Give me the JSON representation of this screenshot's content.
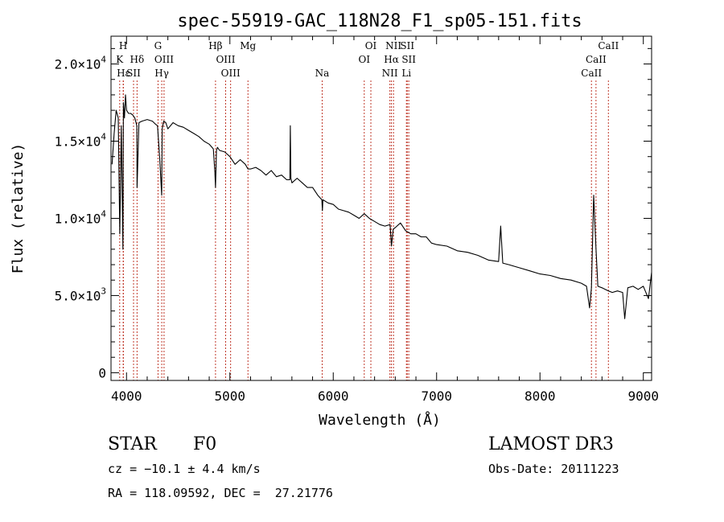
{
  "chart_data": {
    "type": "line",
    "title": "spec-55919-GAC_118N28_F1_sp05-151.fits",
    "xlabel": "Wavelength (Å)",
    "ylabel": "Flux (relative)",
    "xlim": [
      3850,
      9080
    ],
    "ylim": [
      -500,
      21800
    ],
    "x_ticks": [
      4000,
      5000,
      6000,
      7000,
      8000,
      9000
    ],
    "x_tick_labels": [
      "4000",
      "5000",
      "6000",
      "7000",
      "8000",
      "9000"
    ],
    "y_ticks": [
      0,
      5000,
      10000,
      15000,
      20000
    ],
    "y_tick_labels": [
      {
        "mant": "0",
        "exp": ""
      },
      {
        "mant": "5.0×10",
        "exp": "3"
      },
      {
        "mant": "1.0×10",
        "exp": "4"
      },
      {
        "mant": "1.5×10",
        "exp": "4"
      },
      {
        "mant": "2.0×10",
        "exp": "4"
      }
    ],
    "series": [
      {
        "name": "flux",
        "x": [
          3860,
          3880,
          3900,
          3920,
          3935,
          3950,
          3965,
          3970,
          3980,
          3990,
          4000,
          4020,
          4040,
          4060,
          4080,
          4100,
          4102,
          4120,
          4150,
          4200,
          4250,
          4280,
          4300,
          4320,
          4340,
          4345,
          4360,
          4380,
          4400,
          4450,
          4500,
          4550,
          4600,
          4650,
          4700,
          4750,
          4800,
          4840,
          4855,
          4861,
          4870,
          4880,
          4900,
          4950,
          5000,
          5050,
          5100,
          5150,
          5175,
          5200,
          5250,
          5300,
          5350,
          5400,
          5450,
          5500,
          5550,
          5580,
          5585,
          5590,
          5600,
          5650,
          5700,
          5750,
          5800,
          5850,
          5890,
          5895,
          5900,
          5950,
          6000,
          6050,
          6100,
          6150,
          6200,
          6250,
          6300,
          6350,
          6400,
          6450,
          6500,
          6550,
          6563,
          6580,
          6600,
          6650,
          6700,
          6750,
          6800,
          6850,
          6900,
          6950,
          7000,
          7100,
          7200,
          7300,
          7400,
          7500,
          7600,
          7620,
          7640,
          7700,
          7800,
          7900,
          8000,
          8100,
          8200,
          8300,
          8400,
          8450,
          8480,
          8498,
          8520,
          8542,
          8560,
          8600,
          8662,
          8700,
          8750,
          8800,
          8820,
          8850,
          8900,
          8950,
          9000,
          9050,
          9080
        ],
        "y": [
          13500,
          15500,
          17000,
          16500,
          9000,
          16000,
          8000,
          17500,
          16500,
          18000,
          17000,
          16800,
          16800,
          16700,
          16500,
          16000,
          12000,
          16200,
          16300,
          16400,
          16300,
          16100,
          16000,
          14000,
          11500,
          15800,
          16300,
          16200,
          15800,
          16200,
          16000,
          15900,
          15700,
          15500,
          15300,
          15000,
          14800,
          14500,
          13000,
          12000,
          14400,
          14600,
          14400,
          14300,
          14000,
          13500,
          13800,
          13500,
          13200,
          13200,
          13300,
          13100,
          12800,
          13100,
          12700,
          12800,
          12500,
          12500,
          16000,
          12600,
          12300,
          12600,
          12300,
          12000,
          12000,
          11500,
          11200,
          10500,
          11200,
          11000,
          10900,
          10600,
          10500,
          10400,
          10200,
          10000,
          10300,
          10000,
          9800,
          9600,
          9500,
          9600,
          8200,
          9300,
          9400,
          9700,
          9200,
          9000,
          9000,
          8800,
          8800,
          8400,
          8300,
          8200,
          7900,
          7800,
          7600,
          7300,
          7200,
          9500,
          7100,
          7000,
          6800,
          6600,
          6400,
          6300,
          6100,
          6000,
          5800,
          5600,
          4200,
          5500,
          11500,
          8000,
          5600,
          5500,
          5300,
          5200,
          5300,
          5200,
          3500,
          5500,
          5600,
          5400,
          5600,
          4800,
          6500
        ]
      }
    ],
    "lines": [
      {
        "name": "Hε",
        "x": 3970,
        "row": 3,
        "label": "Hε"
      },
      {
        "name": "H",
        "x": 3968,
        "row": 1,
        "label": "H"
      },
      {
        "name": "K",
        "x": 3934,
        "row": 2,
        "label": "K"
      },
      {
        "name": "SII",
        "x": 4068,
        "row": 3,
        "label": "SII"
      },
      {
        "name": "Hδ",
        "x": 4102,
        "row": 2,
        "label": "Hδ"
      },
      {
        "name": "G",
        "x": 4305,
        "row": 1,
        "label": "G"
      },
      {
        "name": "OIII",
        "x": 4363,
        "row": 2,
        "label": "OIII"
      },
      {
        "name": "Hγ",
        "x": 4341,
        "row": 3,
        "label": "Hγ"
      },
      {
        "name": "Hβ",
        "x": 4861,
        "row": 1,
        "label": "Hβ"
      },
      {
        "name": "OIII",
        "x": 4959,
        "row": 2,
        "label": "OIII"
      },
      {
        "name": "OIII",
        "x": 5007,
        "row": 3,
        "label": "OIII"
      },
      {
        "name": "Mg",
        "x": 5175,
        "row": 1,
        "label": "Mg"
      },
      {
        "name": "Na",
        "x": 5893,
        "row": 3,
        "label": "Na"
      },
      {
        "name": "OI",
        "x": 6300,
        "row": 2,
        "label": "OI"
      },
      {
        "name": "OI",
        "x": 6364,
        "row": 1,
        "label": "OI"
      },
      {
        "name": "NII",
        "x": 6548,
        "row": 3,
        "label": "NII"
      },
      {
        "name": "NII",
        "x": 6583,
        "row": 1,
        "label": "NII"
      },
      {
        "name": "Hα",
        "x": 6563,
        "row": 2,
        "label": "Hα"
      },
      {
        "name": "SII",
        "x": 6716,
        "row": 1,
        "label": "SII"
      },
      {
        "name": "SII",
        "x": 6731,
        "row": 2,
        "label": "SII"
      },
      {
        "name": "Li",
        "x": 6708,
        "row": 3,
        "label": "Li"
      },
      {
        "name": "CaII",
        "x": 8498,
        "row": 3,
        "label": "CaII"
      },
      {
        "name": "CaII",
        "x": 8542,
        "row": 2,
        "label": "CaII"
      },
      {
        "name": "CaII",
        "x": 8662,
        "row": 1,
        "label": "CaII"
      }
    ]
  },
  "info": {
    "class_label": "STAR",
    "subclass": "F0",
    "survey": "LAMOST DR3",
    "cz": "cz = −10.1 ± 4.4 km/s",
    "obs_date": "Obs-Date: 20111223",
    "coords": "RA = 118.09592, DEC =  27.21776"
  }
}
